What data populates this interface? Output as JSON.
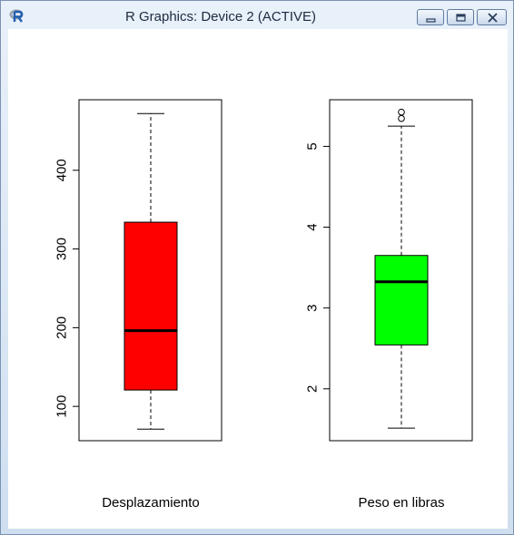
{
  "window": {
    "title": "R Graphics: Device 2 (ACTIVE)",
    "icon": "r-logo-icon",
    "buttons": [
      "minimize-icon",
      "maximize-icon",
      "close-icon"
    ]
  },
  "chart_data": [
    {
      "type": "boxplot",
      "title": "",
      "xlabel": "Desplazamiento",
      "ylabel": "",
      "ylim": [
        56.4,
        489.6
      ],
      "yticks": [
        100,
        200,
        300,
        400
      ],
      "ytick_labels": [
        "100",
        "200",
        "300",
        "400"
      ],
      "fill": "#ff0000",
      "stats": {
        "min": 71.1,
        "q1": 120.8,
        "median": 196.3,
        "q3": 334.0,
        "max": 472.0
      },
      "outliers": []
    },
    {
      "type": "boxplot",
      "title": "",
      "xlabel": "Peso en libras",
      "ylabel": "",
      "ylim": [
        1.358,
        5.577
      ],
      "yticks": [
        2,
        3,
        4,
        5
      ],
      "ytick_labels": [
        "2",
        "3",
        "4",
        "5"
      ],
      "fill": "#00ff00",
      "stats": {
        "min": 1.513,
        "q1": 2.543,
        "median": 3.325,
        "q3": 3.65,
        "max": 5.25
      },
      "outliers": [
        5.345,
        5.424
      ]
    }
  ]
}
